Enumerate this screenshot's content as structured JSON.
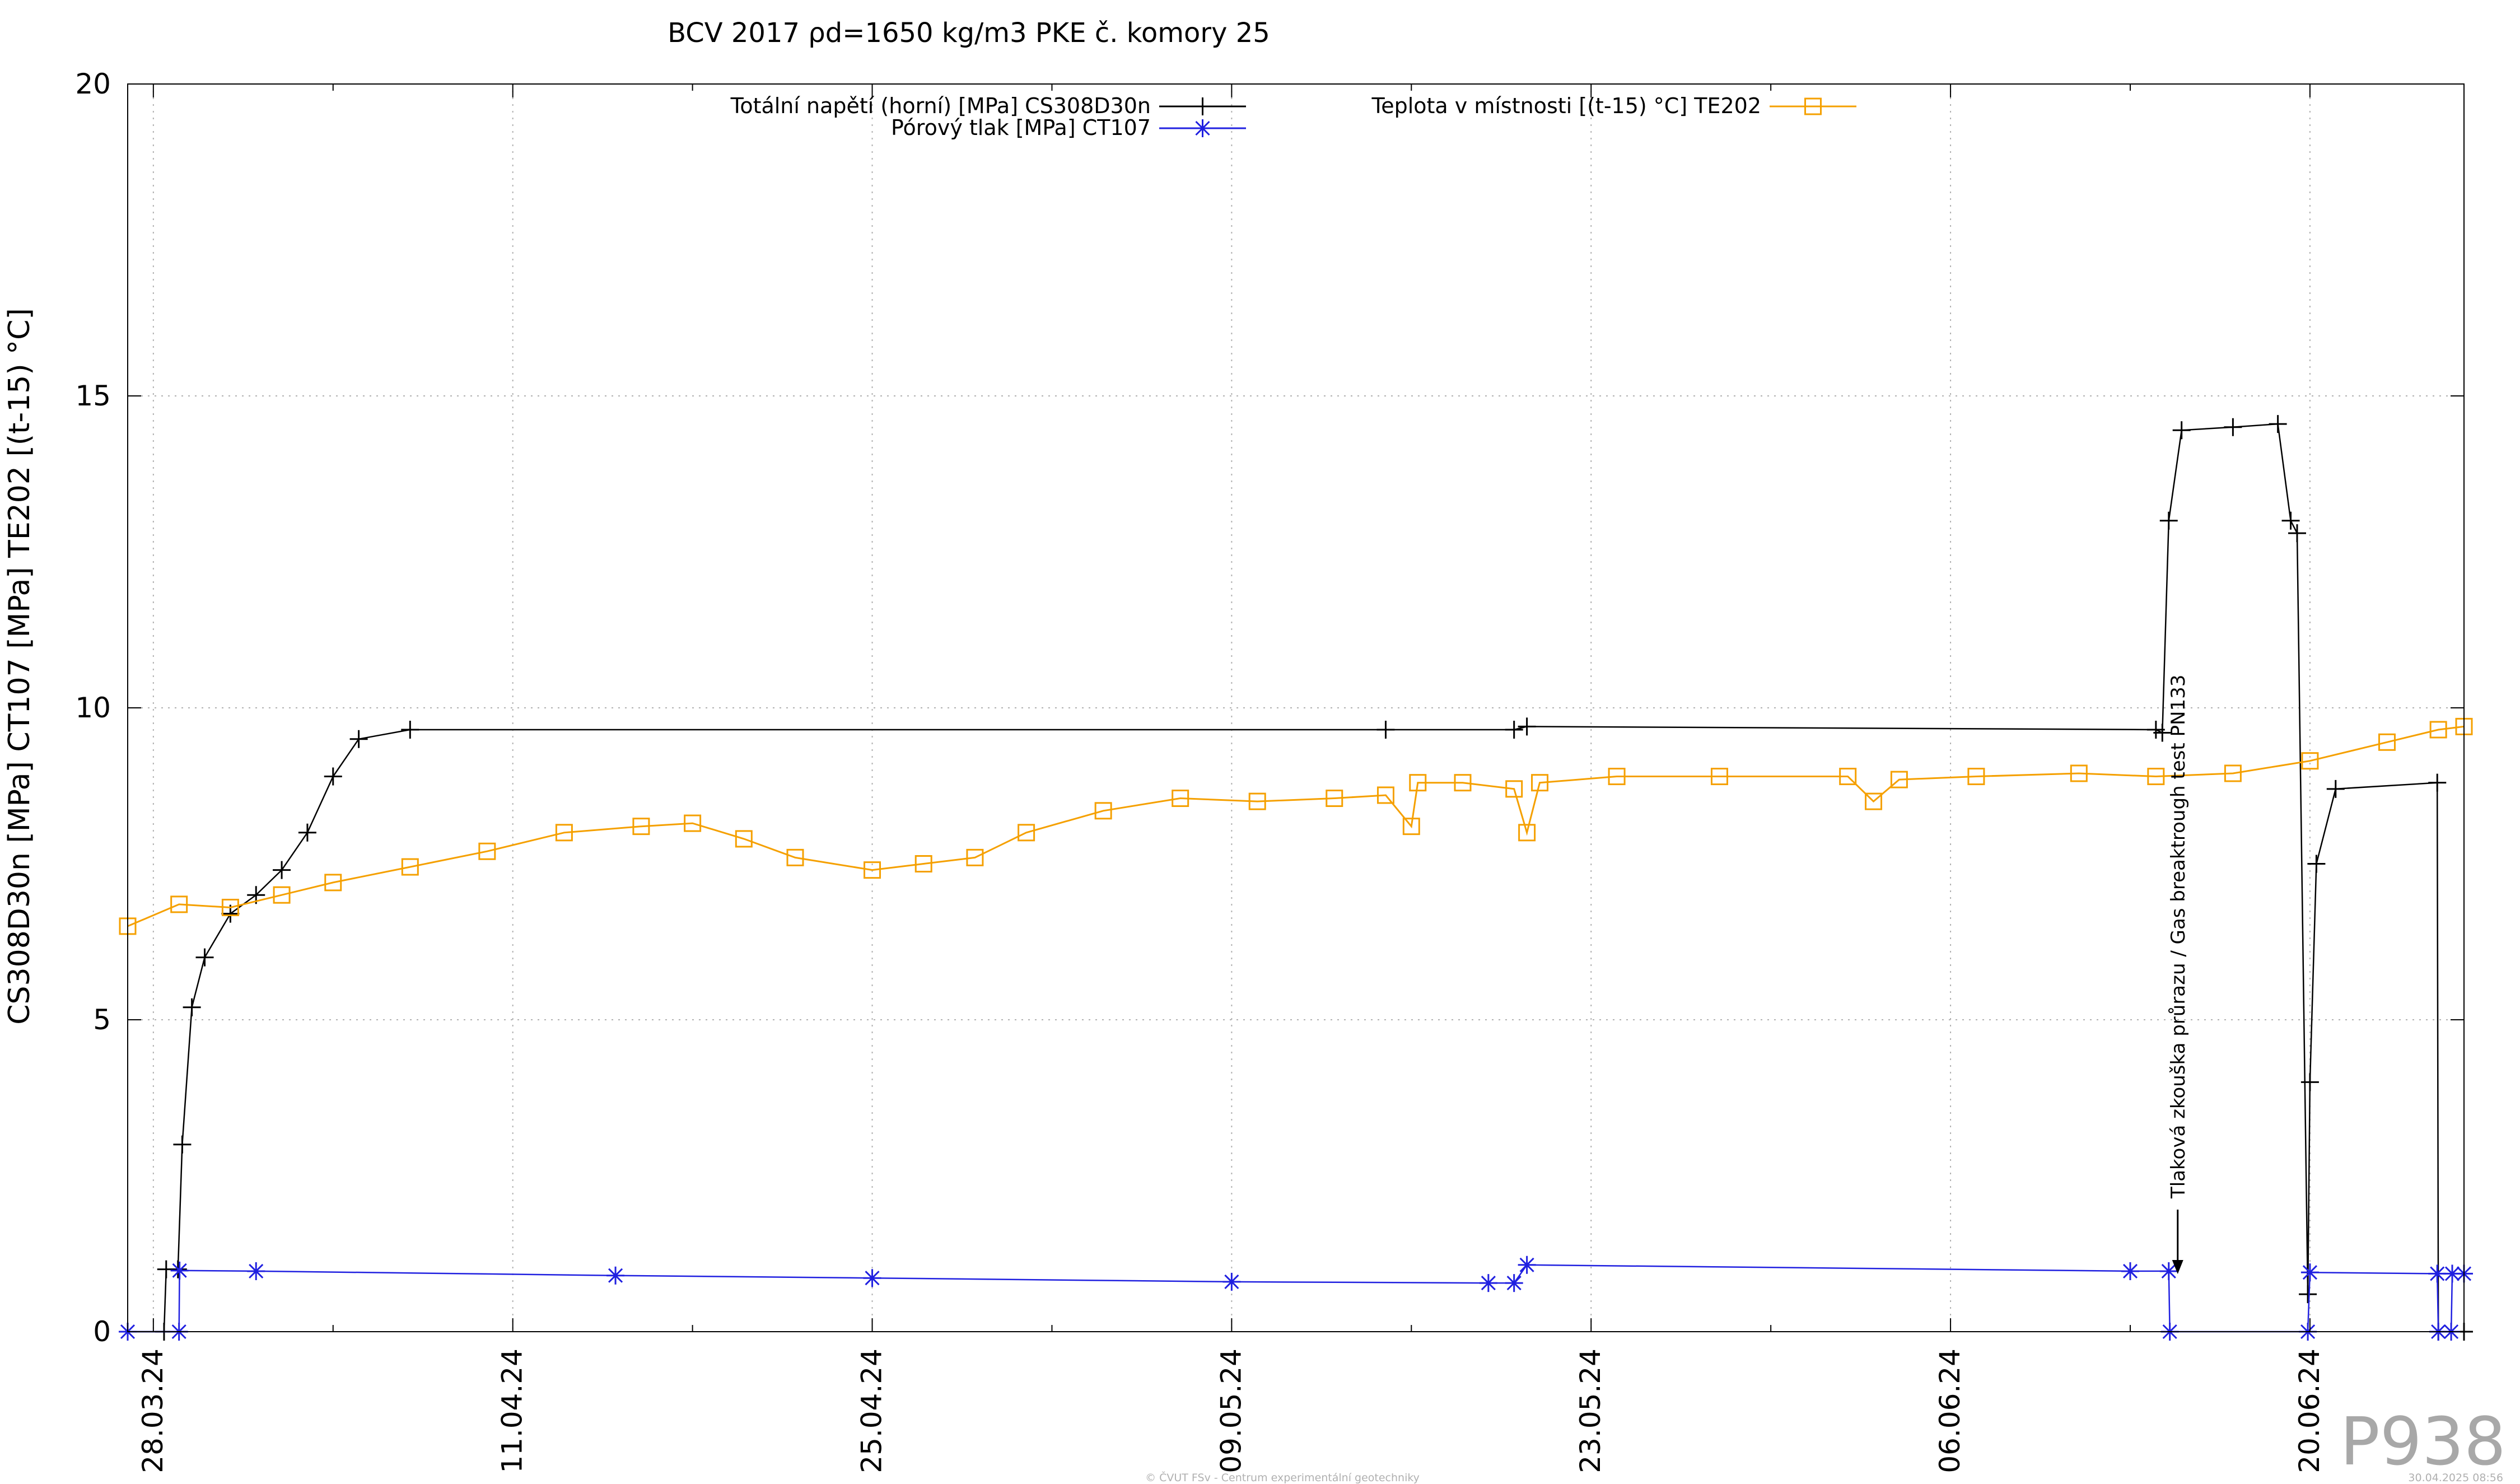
{
  "chart_data": {
    "type": "line",
    "title": "BCV 2017 ρd=1650 kg/m3 PKE č. komory 25",
    "ylabel": "CS308D30n [MPa] CT107 [MPa] TE202 [(t-15) °C]",
    "xlabel": "",
    "ylim": [
      0,
      20
    ],
    "yticks": [
      0,
      5,
      10,
      15,
      20
    ],
    "xlim": [
      "2024-03-27",
      "2024-06-26"
    ],
    "xticks": [
      "28.03.24",
      "11.04.24",
      "25.04.24",
      "09.05.24",
      "23.05.24",
      "06.06.24",
      "20.06.24"
    ],
    "grid": true,
    "legend_position": "top",
    "series": [
      {
        "name": "Totální napětí (horní) [MPa] CS308D30n",
        "color": "#000000",
        "marker": "plus",
        "points": [
          [
            "2024-03-27T00:00",
            0.0
          ],
          [
            "2024-03-28T10:00",
            0.0
          ],
          [
            "2024-03-28T12:00",
            1.0
          ],
          [
            "2024-03-28T23:00",
            1.0
          ],
          [
            "2024-03-29T03:00",
            3.0
          ],
          [
            "2024-03-29T12:00",
            5.2
          ],
          [
            "2024-03-30T00:00",
            6.0
          ],
          [
            "2024-03-31T00:00",
            6.7
          ],
          [
            "2024-04-01T00:00",
            7.0
          ],
          [
            "2024-04-02T00:00",
            7.4
          ],
          [
            "2024-04-03T00:00",
            8.0
          ],
          [
            "2024-04-04T00:00",
            8.9
          ],
          [
            "2024-04-05T00:00",
            9.5
          ],
          [
            "2024-04-07T00:00",
            9.65
          ],
          [
            "2024-05-15T00:00",
            9.65
          ],
          [
            "2024-05-20T00:00",
            9.65
          ],
          [
            "2024-05-20T12:00",
            9.7
          ],
          [
            "2024-06-14T00:00",
            9.65
          ],
          [
            "2024-06-14T06:00",
            9.6
          ],
          [
            "2024-06-14T12:00",
            13.0
          ],
          [
            "2024-06-15T00:00",
            14.45
          ],
          [
            "2024-06-17T00:00",
            14.5
          ],
          [
            "2024-06-18T18:00",
            14.55
          ],
          [
            "2024-06-19T06:00",
            13.0
          ],
          [
            "2024-06-19T12:00",
            12.8
          ],
          [
            "2024-06-19T22:00",
            0.6
          ],
          [
            "2024-06-20T00:00",
            4.0
          ],
          [
            "2024-06-20T06:00",
            7.5
          ],
          [
            "2024-06-21T00:00",
            8.7
          ],
          [
            "2024-06-24T23:00",
            8.8
          ],
          [
            "2024-06-25T00:00",
            0.0
          ],
          [
            "2024-06-26T00:00",
            0.0
          ]
        ]
      },
      {
        "name": "Pórový tlak [MPa] CT107",
        "color": "#2020e0",
        "marker": "star",
        "points": [
          [
            "2024-03-27T00:00",
            0.0
          ],
          [
            "2024-03-29T00:00",
            0.0
          ],
          [
            "2024-03-29T00:30",
            0.98
          ],
          [
            "2024-04-01T00:00",
            0.97
          ],
          [
            "2024-04-15T00:00",
            0.9
          ],
          [
            "2024-04-25T00:00",
            0.86
          ],
          [
            "2024-05-09T00:00",
            0.8
          ],
          [
            "2024-05-19T00:00",
            0.78
          ],
          [
            "2024-05-20T00:00",
            0.78
          ],
          [
            "2024-05-20T12:00",
            1.07
          ],
          [
            "2024-06-13T00:00",
            0.97
          ],
          [
            "2024-06-14T12:00",
            0.97
          ],
          [
            "2024-06-14T13:00",
            0.0
          ],
          [
            "2024-06-19T22:00",
            0.0
          ],
          [
            "2024-06-20T00:00",
            0.95
          ],
          [
            "2024-06-24T23:00",
            0.93
          ],
          [
            "2024-06-25T00:00",
            0.0
          ],
          [
            "2024-06-25T12:00",
            0.0
          ],
          [
            "2024-06-25T13:00",
            0.93
          ],
          [
            "2024-06-26T00:00",
            0.93
          ]
        ]
      },
      {
        "name": "Teplota v místnosti [(t-15) °C] TE202",
        "color": "#f5a000",
        "marker": "square",
        "points": [
          [
            "2024-03-27T00:00",
            6.5
          ],
          [
            "2024-03-29T00:00",
            6.85
          ],
          [
            "2024-03-31T00:00",
            6.8
          ],
          [
            "2024-04-02T00:00",
            7.0
          ],
          [
            "2024-04-04T00:00",
            7.2
          ],
          [
            "2024-04-07T00:00",
            7.45
          ],
          [
            "2024-04-10T00:00",
            7.7
          ],
          [
            "2024-04-13T00:00",
            8.0
          ],
          [
            "2024-04-16T00:00",
            8.1
          ],
          [
            "2024-04-18T00:00",
            8.15
          ],
          [
            "2024-04-20T00:00",
            7.9
          ],
          [
            "2024-04-22T00:00",
            7.6
          ],
          [
            "2024-04-25T00:00",
            7.4
          ],
          [
            "2024-04-27T00:00",
            7.5
          ],
          [
            "2024-04-29T00:00",
            7.6
          ],
          [
            "2024-05-01T00:00",
            8.0
          ],
          [
            "2024-05-04T00:00",
            8.35
          ],
          [
            "2024-05-07T00:00",
            8.55
          ],
          [
            "2024-05-10T00:00",
            8.5
          ],
          [
            "2024-05-13T00:00",
            8.55
          ],
          [
            "2024-05-15T00:00",
            8.6
          ],
          [
            "2024-05-16T00:00",
            8.1
          ],
          [
            "2024-05-16T06:00",
            8.8
          ],
          [
            "2024-05-18T00:00",
            8.8
          ],
          [
            "2024-05-20T00:00",
            8.7
          ],
          [
            "2024-05-20T12:00",
            8.0
          ],
          [
            "2024-05-21T00:00",
            8.8
          ],
          [
            "2024-05-24T00:00",
            8.9
          ],
          [
            "2024-05-28T00:00",
            8.9
          ],
          [
            "2024-06-02T00:00",
            8.9
          ],
          [
            "2024-06-03T00:00",
            8.5
          ],
          [
            "2024-06-04T00:00",
            8.85
          ],
          [
            "2024-06-07T00:00",
            8.9
          ],
          [
            "2024-06-11T00:00",
            8.95
          ],
          [
            "2024-06-14T00:00",
            8.9
          ],
          [
            "2024-06-17T00:00",
            8.95
          ],
          [
            "2024-06-20T00:00",
            9.15
          ],
          [
            "2024-06-23T00:00",
            9.45
          ],
          [
            "2024-06-25T00:00",
            9.65
          ],
          [
            "2024-06-26T00:00",
            9.7
          ]
        ]
      }
    ],
    "annotation": {
      "text": "Tlaková zkouška průrazu / Gas breaktrough test PN133",
      "x": "2024-06-14T12:00"
    }
  },
  "watermark": "P938",
  "footer_left": "© ČVUT FSv - Centrum experimentální geotechniky",
  "footer_right": "30.04.2025 08:56"
}
